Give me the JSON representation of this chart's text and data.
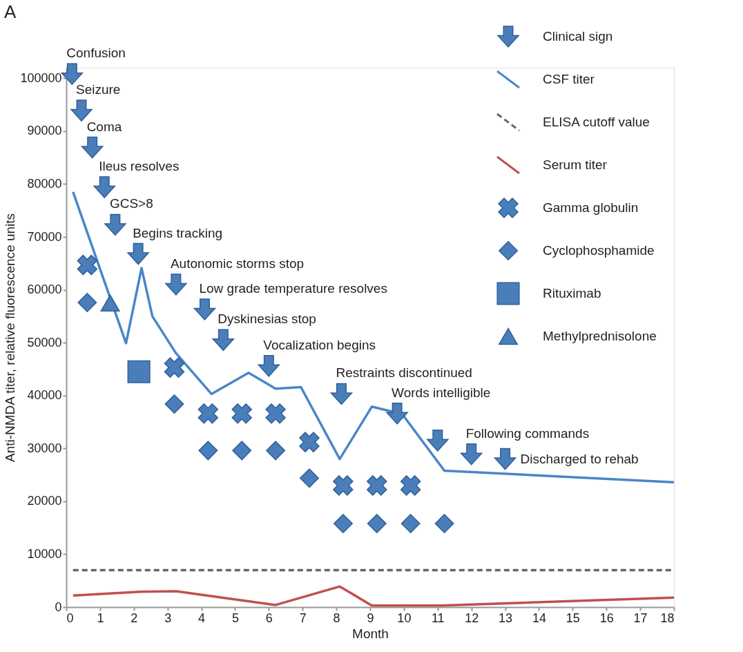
{
  "chart_data": {
    "type": "line",
    "title": "A",
    "xlabel": "Month",
    "ylabel": "Anti-NMDA titer, relative fluorescence units",
    "xlim": [
      0,
      18
    ],
    "xticks": [
      0,
      1,
      2,
      3,
      4,
      5,
      6,
      7,
      8,
      9,
      10,
      11,
      12,
      13,
      14,
      15,
      16,
      17,
      18
    ],
    "ylim": [
      0,
      102000
    ],
    "yticks": [
      0,
      10000,
      20000,
      30000,
      40000,
      50000,
      60000,
      70000,
      80000,
      90000,
      100000
    ],
    "grid": false,
    "legend": "top right",
    "series": [
      {
        "name": "Clinical sign",
        "type": "scatter",
        "color": "#4a7ebb",
        "x": [
          0.17,
          0.45,
          0.77,
          1.13,
          1.45,
          2.13,
          3.25,
          4.1,
          4.65,
          6.0,
          8.15,
          9.8,
          11.0,
          12.0,
          13.0
        ],
        "values": [
          100800,
          93900,
          86900,
          79400,
          72300,
          66800,
          61000,
          56300,
          50500,
          45600,
          40300,
          36600,
          31500,
          28900,
          28000
        ]
      },
      {
        "name": "CSF titer",
        "line_style": "solid",
        "color": "#4a86c8",
        "x": [
          0.2,
          1.77,
          2.23,
          2.55,
          3.25,
          4.3,
          5.4,
          6.2,
          6.95,
          8.1,
          9.05,
          9.95,
          11.2,
          18
        ],
        "values": [
          78500,
          49900,
          64100,
          55000,
          48000,
          40300,
          44300,
          41300,
          41600,
          28000,
          37900,
          36500,
          25800,
          23600
        ]
      },
      {
        "name": "ELISA cutoff value",
        "line_style": "dashed",
        "color": "#666666",
        "x": [
          0.2,
          18
        ],
        "values": [
          7000,
          7000
        ]
      },
      {
        "name": "Serum titer",
        "line_style": "solid",
        "color": "#c0504d",
        "x": [
          0.2,
          2.2,
          3.25,
          6.2,
          8.1,
          9.05,
          11.1,
          18
        ],
        "values": [
          2200,
          2900,
          3000,
          400,
          3900,
          300,
          300,
          1800
        ]
      },
      {
        "name": "Gamma globulin",
        "type": "scatter",
        "marker": "cross",
        "color": "#4a7ebb",
        "x": [
          0.62,
          3.2,
          4.2,
          5.2,
          6.2,
          7.2,
          8.2,
          9.2,
          10.2
        ],
        "values": [
          64700,
          45300,
          36600,
          36600,
          36600,
          31200,
          23000,
          23000,
          23000
        ]
      },
      {
        "name": "Cyclophosphamide",
        "type": "scatter",
        "marker": "diamond",
        "color": "#4a7ebb",
        "x": [
          0.62,
          3.2,
          4.2,
          5.2,
          6.2,
          7.2,
          8.2,
          9.2,
          10.2,
          11.2
        ],
        "values": [
          57600,
          38400,
          29600,
          29600,
          29600,
          24400,
          15800,
          15800,
          15800,
          15800
        ]
      },
      {
        "name": "Rituximab",
        "type": "scatter",
        "marker": "square",
        "color": "#4a7ebb",
        "x": [
          2.15
        ],
        "values": [
          44500
        ]
      },
      {
        "name": "Methylprednisolone",
        "type": "scatter",
        "marker": "triangle",
        "color": "#4a7ebb",
        "x": [
          1.3
        ],
        "values": [
          57500
        ]
      }
    ],
    "annotations": [
      {
        "text": "Confusion",
        "x": 0.17,
        "y": 100800
      },
      {
        "text": "Seizure",
        "x": 0.45,
        "y": 93900
      },
      {
        "text": "Coma",
        "x": 0.77,
        "y": 86900
      },
      {
        "text": "Ileus resolves",
        "x": 1.13,
        "y": 79400
      },
      {
        "text": "GCS>8",
        "x": 1.45,
        "y": 72300
      },
      {
        "text": "Begins tracking",
        "x": 2.13,
        "y": 66800
      },
      {
        "text": "Autonomic storms stop",
        "x": 3.25,
        "y": 61000
      },
      {
        "text": "Low grade temperature resolves",
        "x": 4.1,
        "y": 56300
      },
      {
        "text": "Dyskinesias stop",
        "x": 4.65,
        "y": 50500
      },
      {
        "text": "Vocalization begins",
        "x": 6.0,
        "y": 45600
      },
      {
        "text": "Restraints discontinued",
        "x": 8.15,
        "y": 40300
      },
      {
        "text": "Words intelligible",
        "x": 9.8,
        "y": 36600
      },
      {
        "text": "Following commands",
        "x": 12.0,
        "y": 28900
      },
      {
        "text": "Discharged to rehab",
        "x": 13.0,
        "y": 28000
      }
    ]
  }
}
